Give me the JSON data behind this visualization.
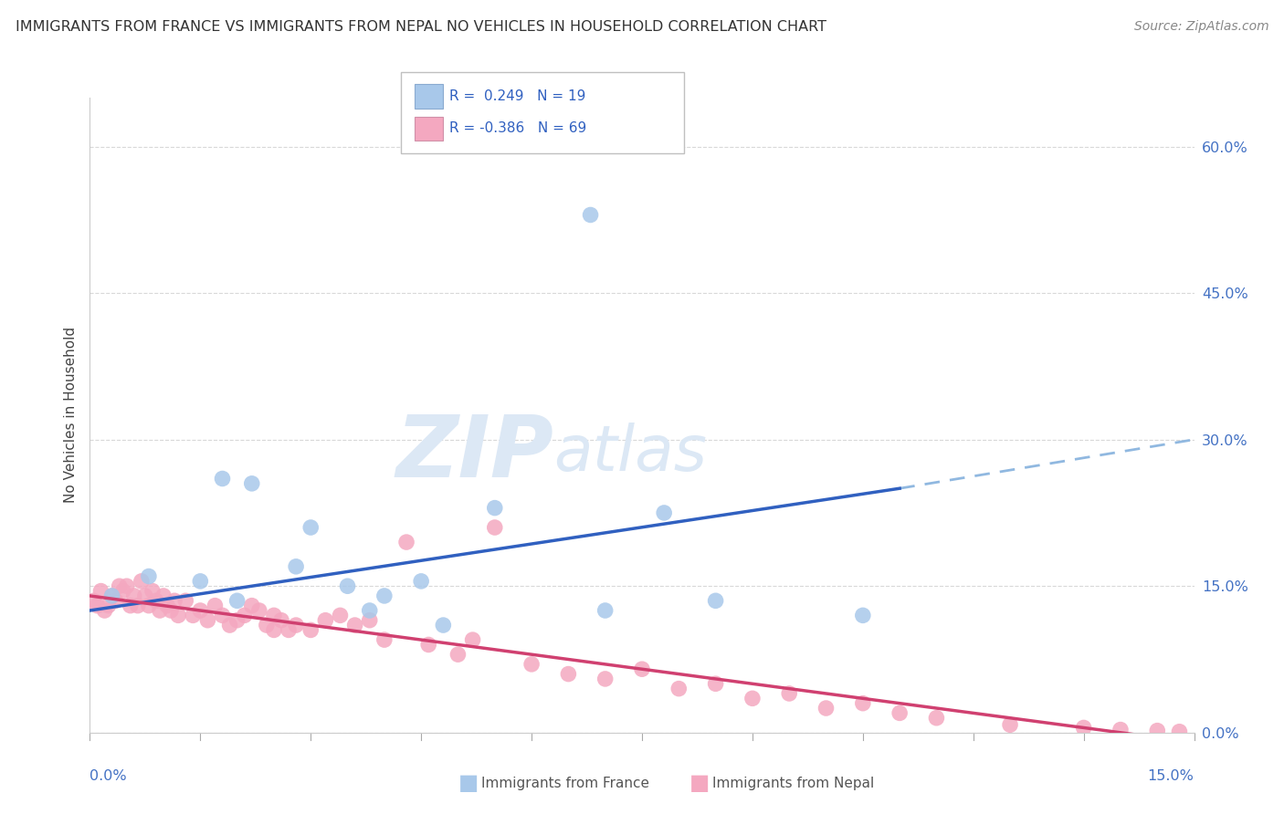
{
  "title": "IMMIGRANTS FROM FRANCE VS IMMIGRANTS FROM NEPAL NO VEHICLES IN HOUSEHOLD CORRELATION CHART",
  "source": "Source: ZipAtlas.com",
  "ylabel": "No Vehicles in Household",
  "ytick_vals": [
    0.0,
    15.0,
    30.0,
    45.0,
    60.0
  ],
  "ytick_labels": [
    "0.0%",
    "15.0%",
    "30.0%",
    "45.0%",
    "60.0%"
  ],
  "xlim": [
    0.0,
    15.0
  ],
  "ylim": [
    0.0,
    65.0
  ],
  "france_r": "0.249",
  "france_n": "19",
  "nepal_r": "-0.386",
  "nepal_n": "69",
  "france_scatter_color": "#a8c8ea",
  "nepal_scatter_color": "#f4a8c0",
  "france_line_color": "#3060c0",
  "nepal_line_color": "#d04070",
  "france_dash_color": "#90b8e0",
  "grid_color": "#d8d8d8",
  "watermark_color": "#dce8f5",
  "france_line_x0": 0.0,
  "france_line_y0": 12.5,
  "france_line_x1": 11.0,
  "france_line_y1": 25.0,
  "france_dash_x0": 11.0,
  "france_dash_y0": 25.0,
  "france_dash_x1": 15.0,
  "france_dash_y1": 30.0,
  "nepal_line_x0": 0.0,
  "nepal_line_y0": 14.0,
  "nepal_line_x1": 15.0,
  "nepal_line_y1": -1.0,
  "france_x": [
    0.3,
    0.8,
    1.5,
    2.0,
    2.8,
    3.5,
    4.5,
    5.5,
    6.8,
    7.8,
    8.5,
    10.5,
    3.0,
    2.2,
    1.8,
    4.0,
    3.8,
    4.8,
    7.0
  ],
  "france_y": [
    14.0,
    16.0,
    15.5,
    13.5,
    17.0,
    15.0,
    15.5,
    23.0,
    53.0,
    22.5,
    13.5,
    12.0,
    21.0,
    25.5,
    26.0,
    14.0,
    12.5,
    11.0,
    12.5
  ],
  "nepal_x": [
    0.05,
    0.1,
    0.15,
    0.2,
    0.25,
    0.3,
    0.35,
    0.4,
    0.45,
    0.5,
    0.55,
    0.6,
    0.65,
    0.7,
    0.75,
    0.8,
    0.85,
    0.9,
    0.95,
    1.0,
    1.05,
    1.1,
    1.15,
    1.2,
    1.3,
    1.4,
    1.5,
    1.6,
    1.7,
    1.8,
    1.9,
    2.0,
    2.1,
    2.2,
    2.3,
    2.4,
    2.5,
    2.6,
    2.7,
    2.8,
    3.0,
    3.2,
    3.4,
    3.6,
    3.8,
    4.0,
    4.3,
    4.6,
    5.0,
    5.5,
    6.0,
    6.5,
    7.0,
    7.5,
    8.0,
    8.5,
    9.0,
    9.5,
    10.0,
    10.5,
    11.0,
    11.5,
    12.5,
    13.5,
    14.0,
    14.5,
    14.8,
    2.5,
    5.2
  ],
  "nepal_y": [
    13.5,
    13.0,
    14.5,
    12.5,
    13.0,
    14.0,
    13.5,
    15.0,
    14.5,
    15.0,
    13.0,
    14.0,
    13.0,
    15.5,
    14.0,
    13.0,
    14.5,
    13.5,
    12.5,
    14.0,
    13.0,
    12.5,
    13.5,
    12.0,
    13.5,
    12.0,
    12.5,
    11.5,
    13.0,
    12.0,
    11.0,
    11.5,
    12.0,
    13.0,
    12.5,
    11.0,
    12.0,
    11.5,
    10.5,
    11.0,
    10.5,
    11.5,
    12.0,
    11.0,
    11.5,
    9.5,
    19.5,
    9.0,
    8.0,
    21.0,
    7.0,
    6.0,
    5.5,
    6.5,
    4.5,
    5.0,
    3.5,
    4.0,
    2.5,
    3.0,
    2.0,
    1.5,
    0.8,
    0.5,
    0.3,
    0.2,
    0.1,
    10.5,
    9.5
  ]
}
